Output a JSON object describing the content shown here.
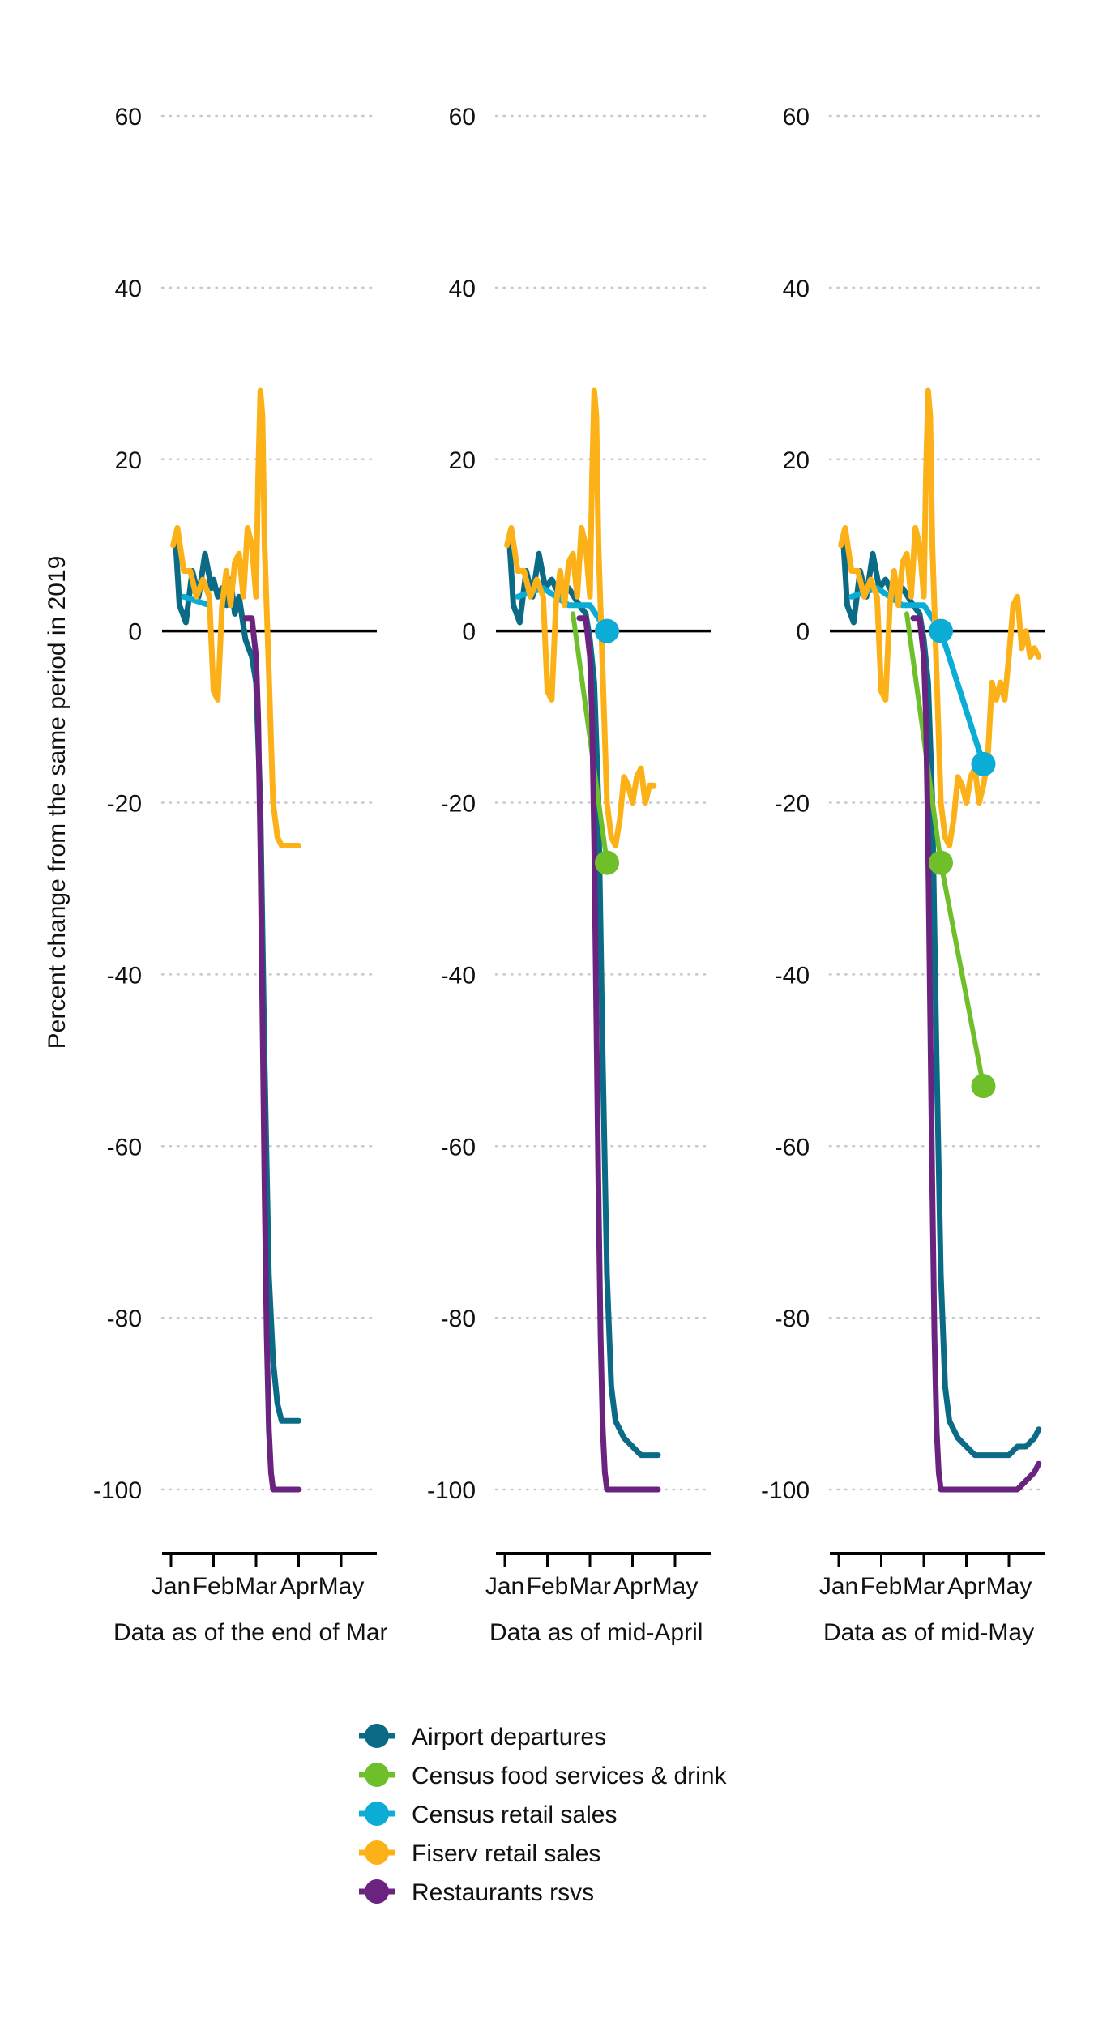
{
  "chart_data": {
    "type": "line",
    "ylabel": "Percent change from the same period in 2019",
    "ylim": [
      -108,
      60
    ],
    "yticks": [
      60,
      40,
      20,
      0,
      -20,
      -40,
      -60,
      -80,
      -100
    ],
    "month_ticks": [
      "Jan",
      "Feb",
      "Mar",
      "Apr",
      "May"
    ],
    "grid": "horizontal dotted",
    "legend_position": "bottom",
    "series_meta": [
      {
        "key": "airport",
        "name": "Airport departures",
        "color": "#0b6b86"
      },
      {
        "key": "census_food",
        "name": "Census food services & drink",
        "color": "#6fbf2b"
      },
      {
        "key": "census_retail",
        "name": "Census retail sales",
        "color": "#0badd6"
      },
      {
        "key": "fiserv",
        "name": "Fiserv retail sales",
        "color": "#fbb117"
      },
      {
        "key": "restaurants",
        "name": "Restaurants rsvs",
        "color": "#6a237e"
      }
    ],
    "panels": [
      {
        "label": "Data as of the end of Mar",
        "series": {
          "airport": {
            "x": [
              0.1,
              0.2,
              0.35,
              0.5,
              0.65,
              0.8,
              0.95,
              1.0,
              1.1,
              1.2,
              1.3,
              1.4,
              1.5,
              1.6,
              1.75,
              1.9,
              2.0,
              2.1,
              2.2,
              2.3,
              2.4,
              2.5,
              2.6,
              2.7,
              2.75,
              2.8,
              2.85,
              2.9,
              2.95,
              3.0
            ],
            "y": [
              11,
              3,
              1,
              7,
              4,
              9,
              5,
              6,
              4,
              5,
              3,
              6,
              2,
              4,
              -1,
              -3,
              -6,
              -20,
              -50,
              -75,
              -85,
              -90,
              -92,
              -92,
              -92,
              -92,
              -92,
              -92,
              -92,
              -92
            ]
          },
          "census_retail": {
            "x": [
              0.3,
              0.9
            ],
            "y": [
              4,
              3
            ]
          },
          "fiserv": {
            "x": [
              0.05,
              0.15,
              0.3,
              0.45,
              0.6,
              0.75,
              0.9,
              1.0,
              1.1,
              1.2,
              1.3,
              1.4,
              1.5,
              1.6,
              1.7,
              1.8,
              1.9,
              2.0,
              2.05,
              2.1,
              2.15,
              2.2,
              2.3,
              2.4,
              2.5,
              2.6,
              2.7,
              2.8,
              2.9,
              3.0
            ],
            "y": [
              10,
              12,
              7,
              7,
              4,
              6,
              4,
              -7,
              -8,
              3,
              7,
              3,
              8,
              9,
              4,
              12,
              10,
              4,
              18,
              28,
              25,
              10,
              -5,
              -20,
              -24,
              -25,
              -25,
              -25,
              -25,
              -25
            ]
          },
          "restaurants": {
            "x": [
              1.75,
              1.9,
              2.0,
              2.05,
              2.1,
              2.15,
              2.2,
              2.25,
              2.3,
              2.35,
              2.4,
              2.5,
              2.6,
              2.7,
              2.8,
              2.9,
              3.0
            ],
            "y": [
              1.5,
              1.5,
              -3,
              -10,
              -25,
              -45,
              -65,
              -82,
              -93,
              -98,
              -100,
              -100,
              -100,
              -100,
              -100,
              -100,
              -100
            ]
          }
        }
      },
      {
        "label": "Data as of mid-April",
        "series": {
          "airport": {
            "x": [
              0.1,
              0.2,
              0.35,
              0.5,
              0.65,
              0.8,
              0.95,
              1.1,
              1.3,
              1.5,
              1.75,
              1.9,
              2.0,
              2.1,
              2.2,
              2.3,
              2.4,
              2.5,
              2.6,
              2.8,
              3.0,
              3.2,
              3.4,
              3.6
            ],
            "y": [
              11,
              3,
              1,
              7,
              4,
              9,
              5,
              6,
              4,
              5,
              3,
              2,
              -1,
              -6,
              -20,
              -50,
              -75,
              -88,
              -92,
              -94,
              -95,
              -96,
              -96,
              -96
            ]
          },
          "census_food": {
            "x": [
              1.6,
              2.4
            ],
            "y": [
              2,
              -27
            ]
          },
          "census_retail": {
            "x": [
              0.3,
              0.9,
              1.5,
              2.0,
              2.4
            ],
            "y": [
              4,
              5,
              3,
              3,
              0
            ]
          },
          "fiserv": {
            "x": [
              0.05,
              0.15,
              0.3,
              0.45,
              0.6,
              0.75,
              0.9,
              1.0,
              1.1,
              1.2,
              1.3,
              1.4,
              1.5,
              1.6,
              1.7,
              1.8,
              1.9,
              2.0,
              2.05,
              2.1,
              2.15,
              2.2,
              2.3,
              2.4,
              2.5,
              2.6,
              2.7,
              2.8,
              2.9,
              3.0,
              3.1,
              3.2,
              3.3,
              3.4,
              3.5
            ],
            "y": [
              10,
              12,
              7,
              7,
              4,
              6,
              4,
              -7,
              -8,
              3,
              7,
              3,
              8,
              9,
              4,
              12,
              10,
              4,
              18,
              28,
              25,
              10,
              -5,
              -20,
              -24,
              -25,
              -22,
              -17,
              -18,
              -20,
              -17,
              -16,
              -20,
              -18,
              -18
            ]
          },
          "restaurants": {
            "x": [
              1.75,
              1.9,
              2.0,
              2.05,
              2.1,
              2.15,
              2.2,
              2.25,
              2.3,
              2.35,
              2.4,
              2.5,
              2.6,
              2.8,
              3.0,
              3.2,
              3.4,
              3.6
            ],
            "y": [
              1.5,
              1.5,
              -3,
              -10,
              -25,
              -45,
              -65,
              -82,
              -93,
              -98,
              -100,
              -100,
              -100,
              -100,
              -100,
              -100,
              -100,
              -100
            ]
          }
        },
        "markers": [
          {
            "series": "census_food",
            "x": 2.4,
            "y": -27
          },
          {
            "series": "census_retail",
            "x": 2.4,
            "y": 0
          }
        ]
      },
      {
        "label": "Data as of mid-May",
        "series": {
          "airport": {
            "x": [
              0.1,
              0.2,
              0.35,
              0.5,
              0.65,
              0.8,
              0.95,
              1.1,
              1.3,
              1.5,
              1.75,
              1.9,
              2.0,
              2.1,
              2.2,
              2.3,
              2.4,
              2.5,
              2.6,
              2.8,
              3.0,
              3.2,
              3.4,
              3.6,
              3.8,
              4.0,
              4.2,
              4.4,
              4.6,
              4.7
            ],
            "y": [
              11,
              3,
              1,
              7,
              4,
              9,
              5,
              6,
              4,
              5,
              3,
              2,
              -1,
              -6,
              -20,
              -50,
              -75,
              -88,
              -92,
              -94,
              -95,
              -96,
              -96,
              -96,
              -96,
              -96,
              -95,
              -95,
              -94,
              -93
            ]
          },
          "census_food": {
            "x": [
              1.6,
              2.4,
              3.4
            ],
            "y": [
              2,
              -27,
              -53
            ]
          },
          "census_retail": {
            "x": [
              0.3,
              0.9,
              1.5,
              2.0,
              2.4,
              3.4
            ],
            "y": [
              4,
              5,
              3,
              3,
              0,
              -15.5
            ]
          },
          "fiserv": {
            "x": [
              0.05,
              0.15,
              0.3,
              0.45,
              0.6,
              0.75,
              0.9,
              1.0,
              1.1,
              1.2,
              1.3,
              1.4,
              1.5,
              1.6,
              1.7,
              1.8,
              1.9,
              2.0,
              2.05,
              2.1,
              2.15,
              2.2,
              2.3,
              2.4,
              2.5,
              2.6,
              2.7,
              2.8,
              2.9,
              3.0,
              3.1,
              3.2,
              3.3,
              3.4,
              3.5,
              3.6,
              3.7,
              3.8,
              3.9,
              4.0,
              4.1,
              4.2,
              4.3,
              4.4,
              4.5,
              4.6,
              4.7
            ],
            "y": [
              10,
              12,
              7,
              7,
              4,
              6,
              4,
              -7,
              -8,
              3,
              7,
              3,
              8,
              9,
              4,
              12,
              10,
              4,
              18,
              28,
              25,
              10,
              -5,
              -20,
              -24,
              -25,
              -22,
              -17,
              -18,
              -20,
              -17,
              -16,
              -20,
              -18,
              -15,
              -6,
              -8,
              -6,
              -8,
              -3,
              3,
              4,
              -2,
              0,
              -3,
              -2,
              -3
            ]
          },
          "restaurants": {
            "x": [
              1.75,
              1.9,
              2.0,
              2.05,
              2.1,
              2.15,
              2.2,
              2.25,
              2.3,
              2.35,
              2.4,
              2.5,
              2.6,
              2.8,
              3.0,
              3.2,
              3.4,
              3.6,
              3.8,
              4.0,
              4.2,
              4.4,
              4.6,
              4.7
            ],
            "y": [
              1.5,
              1.5,
              -3,
              -10,
              -25,
              -45,
              -65,
              -82,
              -93,
              -98,
              -100,
              -100,
              -100,
              -100,
              -100,
              -100,
              -100,
              -100,
              -100,
              -100,
              -100,
              -99,
              -98,
              -97
            ]
          }
        },
        "markers": [
          {
            "series": "census_food",
            "x": 2.4,
            "y": -27
          },
          {
            "series": "census_food",
            "x": 3.4,
            "y": -53
          },
          {
            "series": "census_retail",
            "x": 2.4,
            "y": 0
          },
          {
            "series": "census_retail",
            "x": 3.4,
            "y": -15.5
          }
        ]
      }
    ]
  }
}
